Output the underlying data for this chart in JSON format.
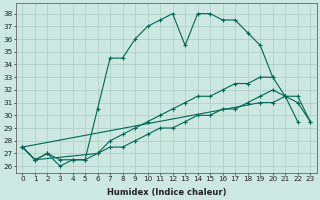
{
  "xlabel": "Humidex (Indice chaleur)",
  "background_color": "#cce8e0",
  "grid_color": "#aaccC4",
  "line_color": "#006655",
  "xlim": [
    -0.5,
    23.5
  ],
  "ylim": [
    25.5,
    38.8
  ],
  "xticks": [
    0,
    1,
    2,
    3,
    4,
    5,
    6,
    7,
    8,
    9,
    10,
    11,
    12,
    13,
    14,
    15,
    16,
    17,
    18,
    19,
    20,
    21,
    22,
    23
  ],
  "yticks": [
    26,
    27,
    28,
    29,
    30,
    31,
    32,
    33,
    34,
    35,
    36,
    37,
    38
  ],
  "series1_x": [
    0,
    1,
    2,
    3,
    4,
    5,
    6,
    7,
    8,
    9,
    10,
    11,
    12,
    13,
    14,
    15,
    16,
    17,
    18,
    19,
    20
  ],
  "series1_y": [
    27.5,
    26.5,
    27.0,
    26.0,
    26.5,
    26.5,
    30.5,
    34.5,
    34.5,
    36.0,
    37.0,
    37.5,
    38.0,
    35.5,
    38.0,
    38.0,
    37.5,
    37.5,
    36.5,
    35.5,
    33.0
  ],
  "series2_x": [
    0,
    19,
    20,
    21,
    22
  ],
  "series2_y": [
    27.5,
    31.0,
    31.0,
    31.5,
    29.5
  ],
  "series3_x": [
    0,
    1,
    2,
    3,
    4,
    5,
    6,
    7,
    8,
    9,
    10,
    11,
    12,
    13,
    14,
    15,
    16,
    17,
    18,
    19,
    20,
    21,
    22,
    23
  ],
  "series3_y": [
    27.5,
    26.5,
    27.0,
    26.5,
    26.5,
    26.5,
    27.0,
    28.0,
    28.5,
    29.0,
    29.5,
    30.0,
    30.5,
    31.0,
    31.5,
    31.5,
    32.0,
    32.5,
    32.5,
    33.0,
    33.0,
    31.5,
    31.5,
    29.5
  ],
  "series4_x": [
    0,
    1,
    6,
    7,
    8,
    9,
    10,
    11,
    12,
    13,
    14,
    15,
    16,
    17,
    18,
    19,
    20,
    21,
    22,
    23
  ],
  "series4_y": [
    27.5,
    26.5,
    27.0,
    27.5,
    27.5,
    28.0,
    28.5,
    29.0,
    29.0,
    29.5,
    30.0,
    30.0,
    30.5,
    30.5,
    31.0,
    31.5,
    32.0,
    31.5,
    31.0,
    29.5
  ],
  "xlabel_fontsize": 6.0,
  "tick_fontsize": 5.2
}
